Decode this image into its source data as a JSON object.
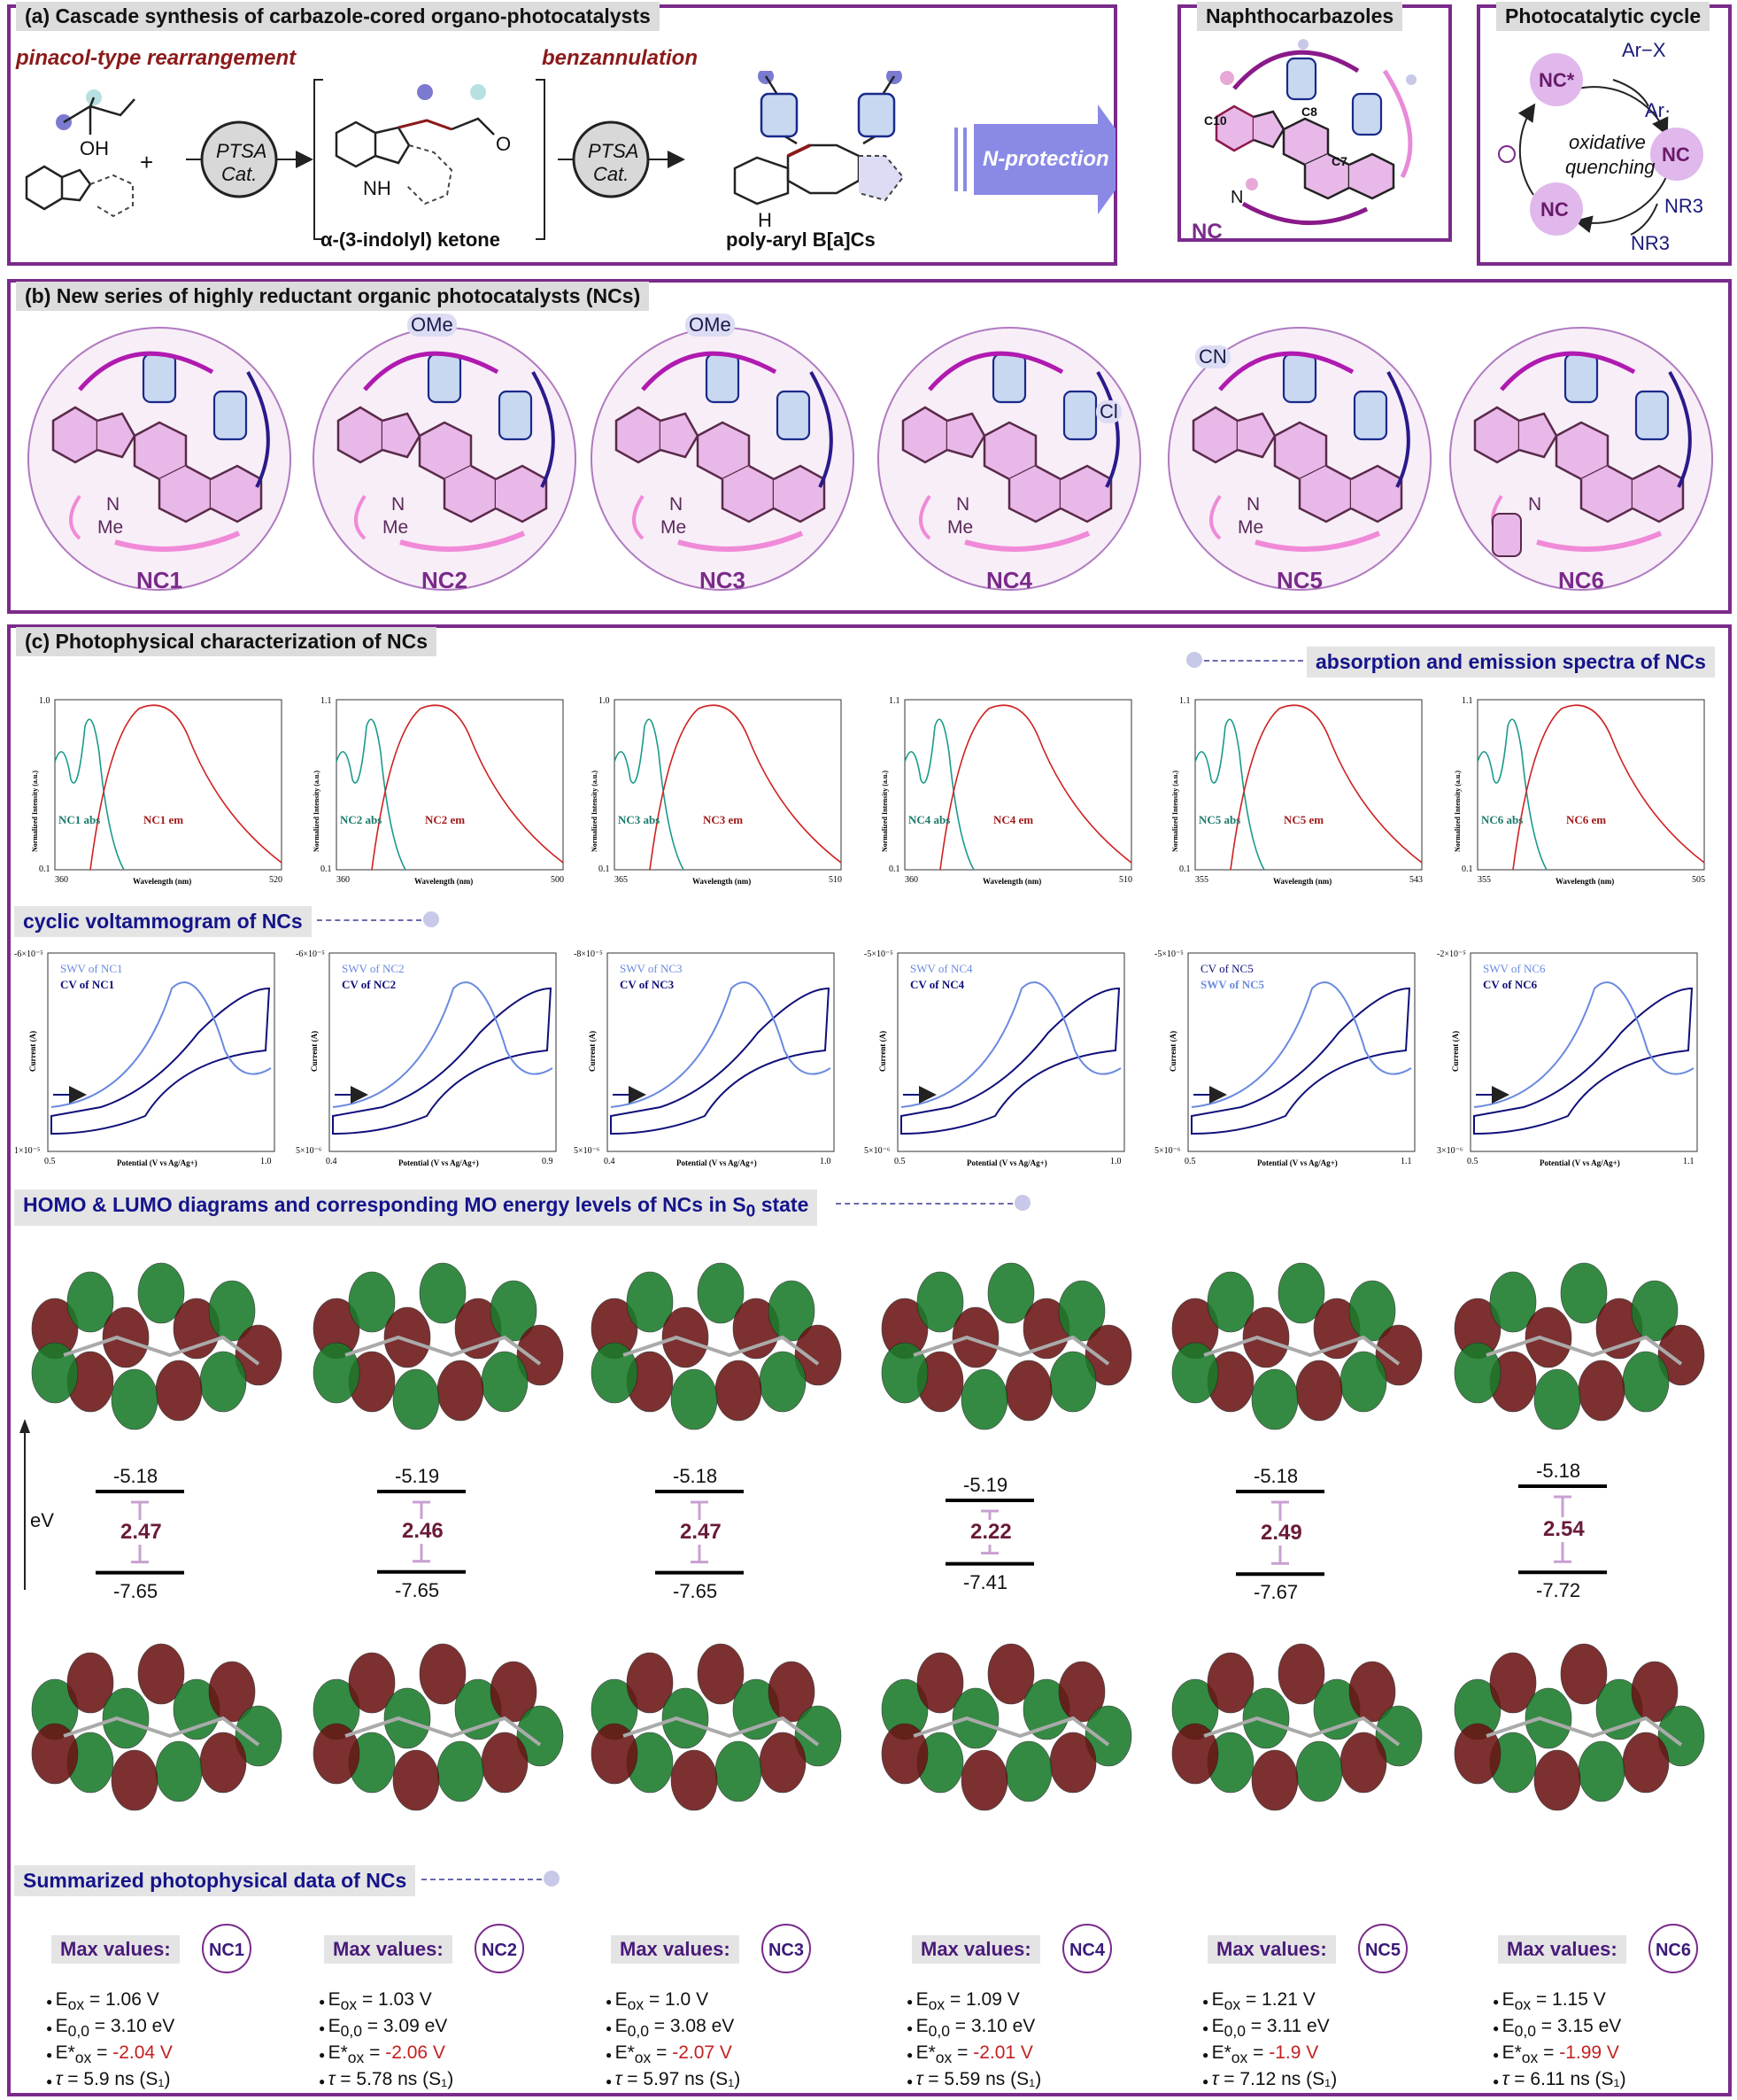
{
  "panel_a": {
    "title": "(a) Cascade synthesis of carbazole-cored organo-photocatalysts",
    "rearr": "pinacol-type rearrangement",
    "benz": "benzannulation",
    "ptsa1": "PTSA",
    "cat1": "Cat.",
    "ptsa2": "PTSA",
    "cat2": "Cat.",
    "ketone": "α-(3-indolyl) ketone",
    "product": "poly-aryl B[a]Cs",
    "nprot": "N-protection",
    "plus": "+",
    "oh": "OH",
    "o": "O",
    "nh": "NH",
    "h": "H"
  },
  "naphtho": {
    "title": "Naphthocarbazoles",
    "c10": "C10",
    "c8": "C8",
    "c7": "C7",
    "nc": "NC",
    "n": "N"
  },
  "cycle": {
    "title": "Photocatalytic cycle",
    "arx": "Ar−X",
    "ar": "Ar·",
    "ncstar": "NC*",
    "ncplus": "NC",
    "nc": "NC",
    "oxid": "oxidative",
    "quench": "quenching",
    "nr3plus": "NR3",
    "nr3": "NR3"
  },
  "panel_b": {
    "title": "(b) New series of highly reductant organic photocatalysts (NCs)",
    "items": [
      {
        "name": "NC1",
        "sub": "",
        "nsub": "Me"
      },
      {
        "name": "NC2",
        "sub": "OMe",
        "nsub": "Me"
      },
      {
        "name": "NC3",
        "sub": "OMe",
        "nsub": "Me"
      },
      {
        "name": "NC4",
        "sub": "Cl",
        "nsub": "Me"
      },
      {
        "name": "NC5",
        "sub": "CN",
        "nsub": "Me"
      },
      {
        "name": "NC6",
        "sub": "",
        "nsub": ""
      }
    ],
    "n_label": "N"
  },
  "panel_c": {
    "title": "(c) Photophysical characterization of NCs",
    "spectra_title": "absorption and emission spectra of NCs",
    "cv_title": "cyclic voltammogram of NCs",
    "homo_title": "HOMO & LUMO diagrams and corresponding MO energy levels of NCs in S",
    "homo_sub": "0",
    "homo_tail": "state",
    "summary_title": "Summarized photophysical data of NCs",
    "ev": "eV",
    "ylabel_spec": "Normalized Intensity (a.u.)",
    "xlabel_spec": "Wavelength (nm)",
    "ylabel_cv": "Current (A)",
    "xlabel_cv": "Potential (V vs Ag/Ag+)"
  },
  "spectra": [
    {
      "abs": "NC1 abs",
      "em": "NC1 em",
      "xmin": "360",
      "xmax": "520",
      "ytop": "1.0",
      "ybot": "0.1"
    },
    {
      "abs": "NC2 abs",
      "em": "NC2 em",
      "xmin": "360",
      "xmax": "500",
      "ytop": "1.1",
      "ybot": "0.1"
    },
    {
      "abs": "NC3 abs",
      "em": "NC3 em",
      "xmin": "365",
      "xmax": "510",
      "ytop": "1.0",
      "ybot": "0.1"
    },
    {
      "abs": "NC4 abs",
      "em": "NC4 em",
      "xmin": "360",
      "xmax": "510",
      "ytop": "1.1",
      "ybot": "0.1"
    },
    {
      "abs": "NC5 abs",
      "em": "NC5 em",
      "xmin": "355",
      "xmax": "543",
      "ytop": "1.1",
      "ybot": "0.1"
    },
    {
      "abs": "NC6 abs",
      "em": "NC6 em",
      "xmin": "355",
      "xmax": "505",
      "ytop": "1.1",
      "ybot": "0.1"
    }
  ],
  "cv": [
    {
      "leg1": "SWV of NC1",
      "leg2": "CV of NC1",
      "ytop": "-6×10⁻⁵",
      "ybot": "1×10⁻⁵",
      "xmin": "0.5",
      "xmax": "1.0"
    },
    {
      "leg1": "SWV of NC2",
      "leg2": "CV of NC2",
      "ytop": "-6×10⁻⁵",
      "ybot": "5×10⁻⁶",
      "xmin": "0.4",
      "xmax": "0.9"
    },
    {
      "leg1": "SWV of NC3",
      "leg2": "CV of NC3",
      "ytop": "-8×10⁻⁵",
      "ybot": "5×10⁻⁶",
      "xmin": "0.4",
      "xmax": "1.0"
    },
    {
      "leg1": "SWV of NC4",
      "leg2": "CV of NC4",
      "ytop": "-5×10⁻⁵",
      "ybot": "5×10⁻⁶",
      "xmin": "0.5",
      "xmax": "1.0"
    },
    {
      "leg1": "CV of NC5",
      "leg2": "SWV of NC5",
      "ytop": "-5×10⁻⁵",
      "ybot": "5×10⁻⁶",
      "xmin": "0.5",
      "xmax": "1.1"
    },
    {
      "leg1": "SWV of NC6",
      "leg2": "CV of NC6",
      "ytop": "-2×10⁻⁵",
      "ybot": "3×10⁻⁶",
      "xmin": "0.5",
      "xmax": "1.1"
    }
  ],
  "levels": [
    {
      "homo": "-5.18",
      "gap": "2.47",
      "lumo": "-7.65"
    },
    {
      "homo": "-5.19",
      "gap": "2.46",
      "lumo": "-7.65"
    },
    {
      "homo": "-5.18",
      "gap": "2.47",
      "lumo": "-7.65"
    },
    {
      "homo": "-5.19",
      "gap": "2.22",
      "lumo": "-7.41"
    },
    {
      "homo": "-5.18",
      "gap": "2.49",
      "lumo": "-7.67"
    },
    {
      "homo": "-5.18",
      "gap": "2.54",
      "lumo": "-7.72"
    }
  ],
  "summary": [
    {
      "max": "Max values:",
      "nc": "NC1",
      "eox": "= 1.06 V",
      "e00": "= 3.10 eV",
      "estar": "-2.04 V",
      "tau": "= 5.9 ns (S₁)"
    },
    {
      "max": "Max values:",
      "nc": "NC2",
      "eox": "= 1.03 V",
      "e00": "= 3.09 eV",
      "estar": "-2.06 V",
      "tau": "= 5.78 ns (S₁)"
    },
    {
      "max": "Max values:",
      "nc": "NC3",
      "eox": "= 1.0 V",
      "e00": "= 3.08 eV",
      "estar": "-2.07 V",
      "tau": "= 5.97 ns (S₁)"
    },
    {
      "max": "Max values:",
      "nc": "NC4",
      "eox": "= 1.09 V",
      "e00": "= 3.10 eV",
      "estar": "-2.01 V",
      "tau": "= 5.59 ns (S₁)"
    },
    {
      "max": "Max values:",
      "nc": "NC5",
      "eox": "= 1.21 V",
      "e00": "= 3.11 eV",
      "estar": "-1.9 V",
      "tau": "= 7.12 ns (S₁)"
    },
    {
      "max": "Max values:",
      "nc": "NC6",
      "eox": "= 1.15 V",
      "e00": "= 3.15 eV",
      "estar": "-1.99 V",
      "tau": "= 6.11 ns (S₁)"
    }
  ],
  "colors": {
    "frame": "#7a2a8a",
    "abs": "#1a9a8a",
    "em": "#d02020",
    "cv": "#10107a",
    "swv": "#6a8ae0"
  }
}
